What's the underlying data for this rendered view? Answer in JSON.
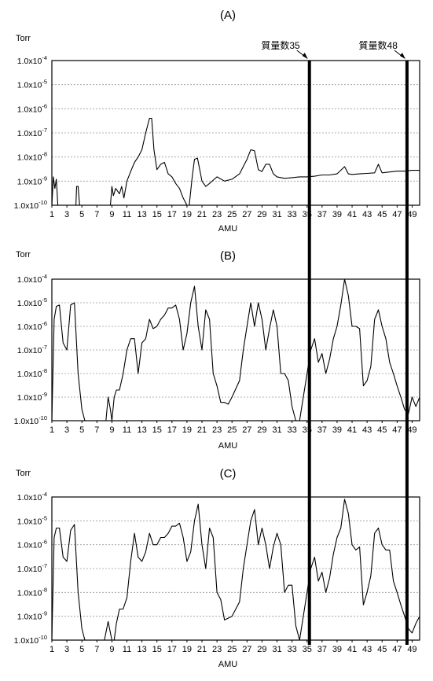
{
  "figure": {
    "annotations": [
      {
        "label": "質量数35",
        "amu": 35
      },
      {
        "label": "質量数48",
        "amu": 48
      }
    ]
  },
  "chart_data": [
    {
      "type": "line",
      "panel_label": "(A)",
      "unit_label": "Torr",
      "xlabel": "AMU",
      "xlim": [
        1,
        50
      ],
      "x_ticks": [
        1,
        3,
        5,
        7,
        9,
        11,
        13,
        15,
        17,
        19,
        21,
        23,
        25,
        27,
        29,
        31,
        33,
        35,
        37,
        39,
        41,
        43,
        45,
        47,
        49
      ],
      "ylim": [
        1e-10,
        0.0001
      ],
      "yscale": "log",
      "y_ticks": [
        "1.0x10",
        "1.0x10",
        "1.0x10",
        "1.0x10",
        "1.0x10",
        "1.0x10",
        "1.0x10"
      ],
      "y_tick_exponents": [
        "-4",
        "-5",
        "-6",
        "-7",
        "-8",
        "-9",
        "-10"
      ],
      "grid": true,
      "series": [
        {
          "x": [
            1,
            1.2,
            1.4,
            1.6,
            1.8,
            2.0,
            4.2,
            4.3,
            4.5,
            4.7,
            8.8,
            9.0,
            9.2,
            9.5,
            10.0,
            10.3,
            10.6,
            11.0,
            11.5,
            12.0,
            12.5,
            13.0,
            13.5,
            14.0,
            14.3,
            14.6,
            15.0,
            15.5,
            16.0,
            16.5,
            17.0,
            17.5,
            18.0,
            18.5,
            19.0,
            19.3,
            19.7,
            20.0,
            20.4,
            21.0,
            21.5,
            22.0,
            23.0,
            24.0,
            25.0,
            26.0,
            27.0,
            27.5,
            28.0,
            28.5,
            29.0,
            29.5,
            30.0,
            30.5,
            31.0,
            32.0,
            33.0,
            34.0,
            35.0,
            36.0,
            37.0,
            38.0,
            39.0,
            40.0,
            40.5,
            41.0,
            42.0,
            43.0,
            44.0,
            44.5,
            45.0,
            46.0,
            47.0,
            48.0,
            49.0,
            50.0
          ],
          "y": [
            1e-10,
            1.5e-09,
            5e-10,
            1.2e-09,
            1e-10,
            1e-10,
            1e-10,
            6e-10,
            6e-10,
            1e-10,
            1e-10,
            6e-10,
            2.5e-10,
            5e-10,
            3e-10,
            6e-10,
            2e-10,
            1e-09,
            2.5e-09,
            6e-09,
            1e-08,
            2e-08,
            1e-07,
            4e-07,
            4e-07,
            2e-08,
            3e-09,
            5e-09,
            6e-09,
            2e-09,
            1.5e-09,
            8e-10,
            5e-10,
            2e-10,
            1e-10,
            1e-10,
            1.5e-09,
            8e-09,
            9e-09,
            1e-09,
            6e-10,
            8e-10,
            1.5e-09,
            1e-09,
            1.2e-09,
            2e-09,
            8e-09,
            2e-08,
            1.8e-08,
            3e-09,
            2.5e-09,
            5e-09,
            5e-09,
            2e-09,
            1.5e-09,
            1.3e-09,
            1.4e-09,
            1.5e-09,
            1.5e-09,
            1.6e-09,
            1.8e-09,
            1.8e-09,
            2e-09,
            4e-09,
            2e-09,
            1.9e-09,
            2e-09,
            2.1e-09,
            2.2e-09,
            5e-09,
            2.2e-09,
            2.4e-09,
            2.6e-09,
            2.6e-09,
            2.8e-09,
            2.8e-09
          ]
        }
      ]
    },
    {
      "type": "line",
      "panel_label": "(B)",
      "unit_label": "Torr",
      "xlabel": "AMU",
      "xlim": [
        1,
        50
      ],
      "x_ticks": [
        1,
        3,
        5,
        7,
        9,
        11,
        13,
        15,
        17,
        19,
        21,
        23,
        25,
        27,
        29,
        31,
        33,
        35,
        37,
        39,
        41,
        43,
        45,
        47,
        49
      ],
      "ylim": [
        1e-10,
        0.0001
      ],
      "yscale": "log",
      "y_ticks": [
        "1.0x10",
        "1.0x10",
        "1.0x10",
        "1.0x10",
        "1.0x10",
        "1.0x10",
        "1.0x10"
      ],
      "y_tick_exponents": [
        "-4",
        "-5",
        "-6",
        "-7",
        "-8",
        "-9",
        "-10"
      ],
      "grid": true,
      "series": [
        {
          "x": [
            1,
            1.3,
            1.6,
            2.0,
            2.5,
            3.0,
            3.5,
            4.0,
            4.5,
            5.0,
            5.4,
            5.6,
            8.2,
            8.5,
            8.8,
            9.0,
            9.3,
            9.6,
            10.0,
            10.5,
            11.0,
            11.5,
            12.0,
            12.5,
            13.0,
            13.5,
            14.0,
            14.5,
            15.0,
            15.5,
            16.0,
            16.5,
            17.0,
            17.5,
            18.0,
            18.5,
            19.0,
            19.5,
            20.0,
            20.5,
            21.0,
            21.5,
            22.0,
            22.5,
            23.0,
            23.5,
            24.0,
            24.5,
            25.0,
            26.0,
            26.5,
            27.0,
            27.5,
            28.0,
            28.5,
            29.0,
            29.5,
            30.0,
            30.5,
            31.0,
            31.5,
            32.0,
            32.5,
            33.0,
            33.5,
            34.0,
            35.5,
            36.0,
            36.5,
            37.0,
            37.5,
            38.0,
            38.5,
            39.0,
            39.5,
            40.0,
            40.5,
            41.0,
            41.5,
            42.0,
            42.5,
            43.0,
            43.5,
            44.0,
            44.5,
            45.0,
            45.5,
            46.0,
            46.5,
            47.0,
            47.5,
            48.0,
            48.5,
            49.0,
            49.5,
            50.0
          ],
          "y": [
            1e-10,
            2e-06,
            7e-06,
            8e-06,
            2e-07,
            1e-07,
            8e-06,
            1e-05,
            1e-08,
            3e-10,
            1e-10,
            1e-10,
            1e-10,
            1e-09,
            3e-10,
            1e-10,
            1e-09,
            2e-09,
            2e-09,
            1e-08,
            1e-07,
            3e-07,
            3e-07,
            1e-08,
            2e-07,
            3e-07,
            2e-06,
            8e-07,
            1e-06,
            2e-06,
            3e-06,
            6e-06,
            6e-06,
            8e-06,
            2e-06,
            1e-07,
            5e-07,
            1e-05,
            5e-05,
            1e-06,
            1e-07,
            5e-06,
            2e-06,
            1e-08,
            3e-09,
            6e-10,
            6e-10,
            5e-10,
            1e-09,
            5e-09,
            1e-07,
            1e-06,
            1e-05,
            1e-06,
            1e-05,
            2e-06,
            1e-07,
            8e-07,
            5e-06,
            1e-06,
            1e-08,
            1e-08,
            5e-09,
            4e-10,
            1e-10,
            1e-10,
            1e-07,
            3e-07,
            3e-08,
            7e-08,
            1e-08,
            4e-08,
            3e-07,
            1e-06,
            8e-06,
            0.0001,
            2e-05,
            1e-06,
            1e-06,
            8e-07,
            3e-09,
            5e-09,
            2e-08,
            2e-06,
            5e-06,
            1e-06,
            3e-07,
            3e-08,
            1e-08,
            3e-09,
            1e-09,
            3e-10,
            2e-10,
            1e-09,
            4e-10,
            1e-09
          ]
        }
      ]
    },
    {
      "type": "line",
      "panel_label": "(C)",
      "unit_label": "Torr",
      "xlabel": "AMU",
      "xlim": [
        1,
        50
      ],
      "x_ticks": [
        1,
        3,
        5,
        7,
        9,
        11,
        13,
        15,
        17,
        19,
        21,
        23,
        25,
        27,
        29,
        31,
        33,
        35,
        37,
        39,
        41,
        43,
        45,
        47,
        49
      ],
      "ylim": [
        1e-10,
        0.0001
      ],
      "yscale": "log",
      "y_ticks": [
        "1.0x10",
        "1.0x10",
        "1.0x10",
        "1.0x10",
        "1.0x10",
        "1.0x10",
        "1.0x10"
      ],
      "y_tick_exponents": [
        "-4",
        "-5",
        "-6",
        "-7",
        "-8",
        "-9",
        "-10"
      ],
      "grid": true,
      "series": [
        {
          "x": [
            1,
            1.3,
            1.6,
            2.0,
            2.5,
            3.0,
            3.5,
            4.0,
            4.5,
            5.0,
            5.4,
            5.7,
            8.0,
            8.5,
            9.0,
            9.3,
            9.6,
            10.0,
            10.5,
            11.0,
            11.5,
            12.0,
            12.5,
            13.0,
            13.5,
            14.0,
            14.5,
            15.0,
            15.5,
            16.0,
            16.5,
            17.0,
            17.5,
            18.0,
            18.5,
            19.0,
            19.5,
            20.0,
            20.5,
            21.0,
            21.5,
            22.0,
            22.5,
            23.0,
            23.5,
            24.0,
            25.0,
            26.0,
            26.5,
            27.0,
            27.5,
            28.0,
            28.5,
            29.0,
            29.5,
            30.0,
            30.5,
            31.0,
            31.5,
            32.0,
            32.5,
            33.0,
            33.5,
            34.0,
            35.5,
            36.0,
            36.5,
            37.0,
            37.5,
            38.0,
            38.5,
            39.0,
            39.5,
            40.0,
            40.5,
            41.0,
            41.5,
            42.0,
            42.5,
            43.0,
            43.5,
            44.0,
            44.5,
            45.0,
            45.5,
            46.0,
            46.5,
            47.0,
            47.5,
            48.0,
            48.5,
            49.0,
            49.5,
            50.0
          ],
          "y": [
            1e-10,
            2e-06,
            5e-06,
            5e-06,
            3e-07,
            2e-07,
            4e-06,
            7e-06,
            1e-08,
            3e-10,
            1e-10,
            1e-10,
            1e-10,
            6e-10,
            1e-10,
            1e-10,
            5e-10,
            2e-09,
            2e-09,
            6e-09,
            2e-07,
            3e-06,
            3e-07,
            2e-07,
            5e-07,
            3e-06,
            1e-06,
            1e-06,
            2e-06,
            2e-06,
            3e-06,
            6e-06,
            6e-06,
            8e-06,
            2e-06,
            2e-07,
            5e-07,
            1e-05,
            5e-05,
            1e-06,
            1e-07,
            5e-06,
            2e-06,
            1e-08,
            5e-09,
            7e-10,
            1e-09,
            4e-09,
            1e-07,
            1e-06,
            1e-05,
            3e-05,
            1e-06,
            5e-06,
            1e-06,
            1e-07,
            8e-07,
            3e-06,
            1e-06,
            1e-08,
            2e-08,
            2e-08,
            4e-10,
            1e-10,
            1e-07,
            3e-07,
            3e-08,
            7e-08,
            1e-08,
            4e-08,
            4e-07,
            2e-06,
            5e-06,
            8e-05,
            2e-05,
            1e-06,
            6e-07,
            8e-07,
            3e-09,
            1e-08,
            5e-08,
            3e-06,
            5e-06,
            1e-06,
            6e-07,
            6e-07,
            3e-08,
            1e-08,
            3e-09,
            1e-09,
            3e-10,
            2e-10,
            5e-10,
            1e-09
          ]
        }
      ]
    }
  ]
}
